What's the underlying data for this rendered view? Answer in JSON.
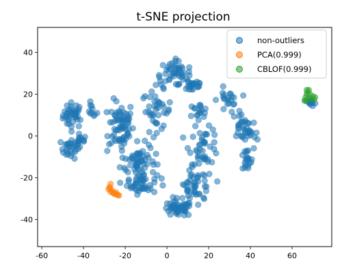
{
  "chart_data": {
    "type": "scatter",
    "title": "t-SNE projection",
    "xlabel": "",
    "ylabel": "",
    "xlim": [
      -62,
      79
    ],
    "ylim": [
      -53,
      52
    ],
    "xticks": [
      -60,
      -40,
      -20,
      0,
      20,
      40,
      60
    ],
    "yticks": [
      -40,
      -20,
      0,
      20,
      40
    ],
    "grid": false,
    "legend_position": "top-right",
    "series": [
      {
        "name": "non-outliers",
        "color": "#1f77b4",
        "clusters": [
          {
            "center": [
              -45,
              10
            ],
            "spread": [
              4,
              5
            ],
            "count": 40
          },
          {
            "center": [
              -46,
              -6
            ],
            "spread": [
              4,
              4
            ],
            "count": 30
          },
          {
            "center": [
              -36,
              12
            ],
            "spread": [
              2,
              3
            ],
            "count": 10
          },
          {
            "center": [
              -42,
              -2
            ],
            "spread": [
              3,
              3
            ],
            "count": 10
          },
          {
            "center": [
              -22,
              5
            ],
            "spread": [
              5,
              10
            ],
            "count": 70
          },
          {
            "center": [
              -14,
              -12
            ],
            "spread": [
              7,
              7
            ],
            "count": 60
          },
          {
            "center": [
              -12,
              -23
            ],
            "spread": [
              6,
              4
            ],
            "count": 40
          },
          {
            "center": [
              -5,
              12
            ],
            "spread": [
              6,
              8
            ],
            "count": 40
          },
          {
            "center": [
              3,
              30
            ],
            "spread": [
              7,
              5
            ],
            "count": 45
          },
          {
            "center": [
              12,
              25
            ],
            "spread": [
              5,
              4
            ],
            "count": 25
          },
          {
            "center": [
              5,
              -35
            ],
            "spread": [
              6,
              3
            ],
            "count": 45
          },
          {
            "center": [
              14,
              -25
            ],
            "spread": [
              7,
              8
            ],
            "count": 50
          },
          {
            "center": [
              18,
              -5
            ],
            "spread": [
              6,
              7
            ],
            "count": 40
          },
          {
            "center": [
              15,
              12
            ],
            "spread": [
              4,
              3
            ],
            "count": 18
          },
          {
            "center": [
              29,
              17
            ],
            "spread": [
              4,
              5
            ],
            "count": 22
          },
          {
            "center": [
              36,
              5
            ],
            "spread": [
              4,
              5
            ],
            "count": 25
          },
          {
            "center": [
              38,
              -12
            ],
            "spread": [
              3,
              5
            ],
            "count": 20
          },
          {
            "center": [
              40,
              0
            ],
            "spread": [
              3,
              3
            ],
            "count": 12
          },
          {
            "center": [
              69,
              16
            ],
            "spread": [
              2,
              1.5
            ],
            "count": 14
          }
        ]
      },
      {
        "name": "PCA(0.999)",
        "color": "#ff7f0e",
        "points": [
          [
            -27,
            -23
          ],
          [
            -27.5,
            -24.5
          ],
          [
            -28,
            -25.5
          ],
          [
            -26.5,
            -26
          ],
          [
            -27,
            -26.8
          ],
          [
            -26,
            -27
          ],
          [
            -25.5,
            -27.5
          ],
          [
            -25,
            -27.8
          ],
          [
            -24,
            -28
          ],
          [
            -23.5,
            -28.3
          ],
          [
            -23,
            -28.5
          ],
          [
            -24.5,
            -27
          ],
          [
            -27.3,
            -25
          ]
        ]
      },
      {
        "name": "CBLOF(0.999)",
        "color": "#2ca02c",
        "points": [
          [
            66,
            17
          ],
          [
            66.5,
            18.5
          ],
          [
            67,
            20
          ],
          [
            67.5,
            21
          ],
          [
            68,
            22
          ],
          [
            67,
            22
          ],
          [
            68.5,
            20
          ],
          [
            70,
            19
          ],
          [
            71,
            18.5
          ],
          [
            69,
            18
          ],
          [
            66.3,
            16.8
          ],
          [
            70.5,
            17.5
          ],
          [
            68,
            17.8
          ]
        ]
      }
    ]
  }
}
